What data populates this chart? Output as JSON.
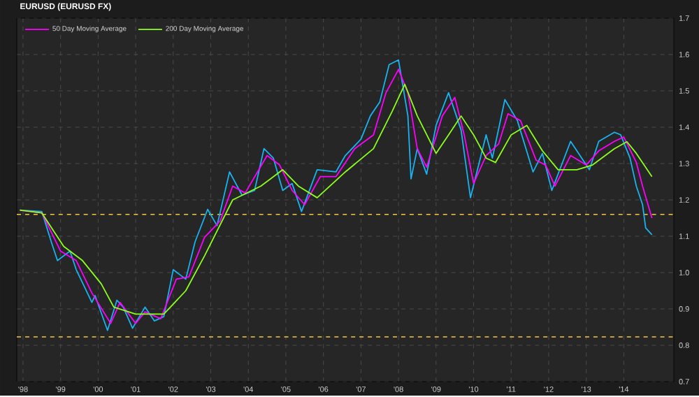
{
  "chart_data": {
    "type": "line",
    "title": "EURUSD (EURUSD FX)",
    "xlim": [
      "1998-05",
      "2015-11"
    ],
    "ylim": [
      0.7,
      1.7
    ],
    "xticks": [
      {
        "value": "1998-07",
        "label": "'98"
      },
      {
        "value": "1999-07",
        "label": "'99"
      },
      {
        "value": "2000-07",
        "label": "'00"
      },
      {
        "value": "2001-07",
        "label": "'01"
      },
      {
        "value": "2002-07",
        "label": "'02"
      },
      {
        "value": "2003-07",
        "label": "'03"
      },
      {
        "value": "2004-07",
        "label": "'04"
      },
      {
        "value": "2005-07",
        "label": "'05"
      },
      {
        "value": "2006-07",
        "label": "'06"
      },
      {
        "value": "2007-07",
        "label": "'07"
      },
      {
        "value": "2008-07",
        "label": "'08"
      },
      {
        "value": "2009-07",
        "label": "'09"
      },
      {
        "value": "2010-07",
        "label": "'10"
      },
      {
        "value": "2011-07",
        "label": "'11"
      },
      {
        "value": "2012-07",
        "label": "'12"
      },
      {
        "value": "2013-07",
        "label": "'13"
      },
      {
        "value": "2014-07",
        "label": "'14"
      }
    ],
    "yticks": [
      0.7,
      0.8,
      0.9,
      {
        "value": 1,
        "label": "1.0"
      },
      1.1,
      1.2,
      1.3,
      1.4,
      1.5,
      1.6,
      1.7
    ],
    "grid": true,
    "legend": "top left",
    "marker": "none",
    "line_style": "solid",
    "ref_lines": [
      {
        "axis": "y",
        "value": 1.16,
        "color": "#f5c842",
        "line_style": "dashed"
      },
      {
        "axis": "y",
        "value": 0.823,
        "color": "#f5c842",
        "line_style": "dashed"
      }
    ],
    "series": [
      {
        "color": "#1ab2f0",
        "x": [
          "1998-06",
          "1999-01",
          "1999-04",
          "1999-06",
          "1999-10",
          "1999-12",
          "2000-05",
          "2000-06",
          "2000-10",
          "2001-01",
          "2001-03",
          "2001-06",
          "2001-10",
          "2002-01",
          "2002-04",
          "2002-07",
          "2002-11",
          "2003-02",
          "2003-06",
          "2003-09",
          "2004-01",
          "2004-05",
          "2004-09",
          "2004-12",
          "2005-03",
          "2005-06",
          "2005-09",
          "2005-12",
          "2006-05",
          "2006-11",
          "2007-02",
          "2007-07",
          "2007-10",
          "2008-01",
          "2008-04",
          "2008-07",
          "2008-10",
          "2008-11",
          "2009-01",
          "2009-04",
          "2009-07",
          "2009-11",
          "2010-03",
          "2010-06",
          "2010-11",
          "2011-01",
          "2011-05",
          "2011-09",
          "2012-02",
          "2012-05",
          "2012-08",
          "2013-02",
          "2013-08",
          "2013-11",
          "2014-04",
          "2014-06",
          "2014-09",
          "2014-11",
          "2015-01",
          "2015-02",
          "2015-04"
        ],
        "values": [
          1.172,
          1.168,
          1.085,
          1.033,
          1.059,
          1.008,
          0.918,
          0.937,
          0.841,
          0.924,
          0.905,
          0.847,
          0.905,
          0.867,
          0.879,
          1.008,
          0.982,
          1.085,
          1.174,
          1.129,
          1.277,
          1.213,
          1.226,
          1.341,
          1.315,
          1.226,
          1.245,
          1.168,
          1.283,
          1.277,
          1.322,
          1.367,
          1.431,
          1.469,
          1.572,
          1.585,
          1.431,
          1.258,
          1.341,
          1.271,
          1.405,
          1.495,
          1.392,
          1.206,
          1.379,
          1.315,
          1.476,
          1.418,
          1.277,
          1.328,
          1.226,
          1.361,
          1.283,
          1.361,
          1.386,
          1.379,
          1.315,
          1.238,
          1.187,
          1.123,
          1.104
        ]
      },
      {
        "name": "50 Day Moving Average",
        "color": "#ff00ff",
        "x": [
          "1998-06",
          "1999-01",
          "1999-07",
          "1999-12",
          "2000-05",
          "2000-11",
          "2001-02",
          "2001-07",
          "2001-10",
          "2002-03",
          "2002-08",
          "2002-12",
          "2003-05",
          "2003-10",
          "2004-02",
          "2004-06",
          "2005-01",
          "2005-05",
          "2005-09",
          "2006-01",
          "2006-06",
          "2006-11",
          "2007-05",
          "2007-11",
          "2008-03",
          "2008-07",
          "2008-10",
          "2009-01",
          "2009-04",
          "2009-09",
          "2010-01",
          "2010-04",
          "2010-07",
          "2010-11",
          "2011-03",
          "2011-06",
          "2011-10",
          "2012-03",
          "2012-06",
          "2012-09",
          "2013-02",
          "2013-07",
          "2013-11",
          "2014-04",
          "2014-07",
          "2014-11",
          "2015-01",
          "2015-04"
        ],
        "values": [
          1.172,
          1.164,
          1.059,
          1.033,
          0.944,
          0.86,
          0.918,
          0.86,
          0.892,
          0.873,
          0.982,
          0.988,
          1.097,
          1.142,
          1.238,
          1.219,
          1.322,
          1.296,
          1.226,
          1.187,
          1.264,
          1.264,
          1.341,
          1.379,
          1.495,
          1.559,
          1.495,
          1.341,
          1.29,
          1.431,
          1.482,
          1.379,
          1.245,
          1.322,
          1.354,
          1.437,
          1.418,
          1.309,
          1.296,
          1.238,
          1.322,
          1.296,
          1.335,
          1.361,
          1.373,
          1.303,
          1.238,
          1.15
        ]
      },
      {
        "name": "200 Day Moving Average",
        "color": "#8cff1a",
        "x": [
          "1998-06",
          "1999-01",
          "1999-08",
          "2000-02",
          "2000-08",
          "2000-12",
          "2001-07",
          "2002-04",
          "2002-11",
          "2003-05",
          "2004-02",
          "2004-11",
          "2005-06",
          "2005-11",
          "2006-05",
          "2007-02",
          "2007-11",
          "2008-05",
          "2008-09",
          "2009-01",
          "2009-07",
          "2009-11",
          "2010-03",
          "2010-07",
          "2010-11",
          "2011-02",
          "2011-07",
          "2011-12",
          "2012-05",
          "2012-10",
          "2013-04",
          "2013-09",
          "2014-04",
          "2014-08",
          "2014-11",
          "2015-04"
        ],
        "values": [
          1.172,
          1.164,
          1.072,
          1.033,
          0.969,
          0.905,
          0.886,
          0.886,
          0.95,
          1.046,
          1.2,
          1.238,
          1.283,
          1.238,
          1.206,
          1.277,
          1.341,
          1.444,
          1.518,
          1.431,
          1.328,
          1.379,
          1.431,
          1.379,
          1.315,
          1.303,
          1.379,
          1.405,
          1.335,
          1.283,
          1.283,
          1.296,
          1.341,
          1.36,
          1.328,
          1.264
        ]
      }
    ]
  }
}
